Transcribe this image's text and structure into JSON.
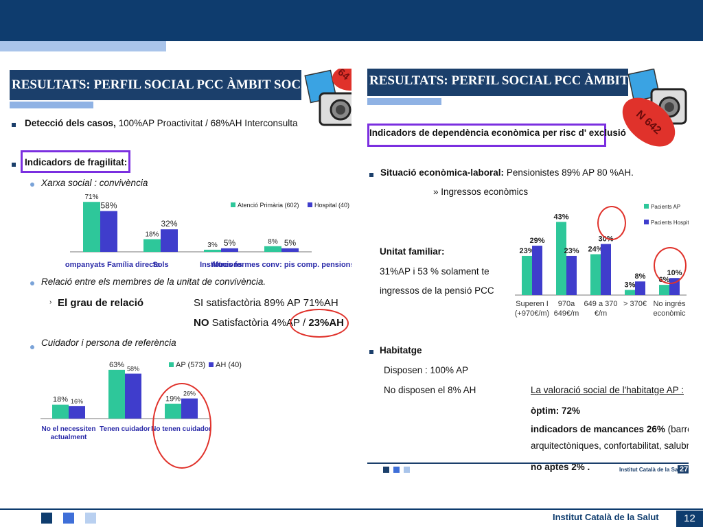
{
  "slide": {
    "footer_org": "Institut Català de la Salut",
    "page_number": "12"
  },
  "left": {
    "title": "RESULTATS: PERFIL SOCIAL PCC ÀMBIT SOCIAL",
    "badge_partial": "64",
    "detection_label": "Detecció dels casos,",
    "detection_value": "100%AP Proactivitat / 68%AH Interconsulta",
    "frailty_heading": "Indicadors de fragilitat:",
    "social_network": "Xarxa social : convivència",
    "relation_heading": "Relació entre els membres de la unitat de convivència.",
    "relation_degree": "El grau de relació",
    "satisfactory": "SI satisfactòria 89% AP 71%AH",
    "not_satisfactory_no": "NO",
    "not_satisfactory_rest": "Satisfactòria 4%AP /",
    "not_satisfactory_ah": "23%AH",
    "caregiver_heading": "Cuidador i persona de referència"
  },
  "right": {
    "title": "RESULTATS: PERFIL SOCIAL PCC ÀMBIT SOCIAL",
    "badge": "N 642",
    "dependency_box": "Indicadors de dependència econòmica per risc d' exclusió",
    "econ_label": "Situació econòmica-laboral:",
    "econ_value": "Pensionistes 89% AP 80 %AH.",
    "income": "» Ingressos econòmics",
    "unit_family_1": "Unitat familiar:",
    "unit_family_2": "31%AP i 53 % solament te",
    "unit_family_3": "ingressos de la pensió PCC",
    "housing_heading": "Habitatge",
    "housing_yes": "Disposen : 100% AP",
    "housing_no": "No disposen el 8% AH",
    "valuation_title": "La valoració social de l'habitatge AP :",
    "optimal": "òptim: 72%",
    "deficits_bold": "indicadors de mancances 26%",
    "deficits_rest": "(barreres",
    "deficits_line2": "arquitectòniques, confortabilitat, salubritat)",
    "not_fit": "no aptes 2% .",
    "footer_org_small": "Institut Català de la Salut",
    "footer_page_small": "27"
  },
  "colors": {
    "green": "#2ec79a",
    "blue": "#3f3dcc",
    "navy": "#1b3f6b",
    "red": "#e0322b",
    "purple": "#7b2fe0"
  },
  "chart_data": [
    {
      "type": "bar",
      "categories": [
        "Acompanyats Família directa",
        "Sols",
        "Institucions",
        "Altres formes conv: pis comp. pensions"
      ],
      "series": [
        {
          "name": "Atenció Primària (602)",
          "values": [
            71,
            18,
            3,
            8
          ],
          "labels": [
            "71%",
            "18%",
            "3%",
            "8%"
          ]
        },
        {
          "name": "Hospital   (40)",
          "values": [
            58,
            32,
            5,
            5
          ],
          "labels": [
            "58%",
            "32%",
            "5%",
            "5%"
          ]
        }
      ],
      "ylim": [
        0,
        80
      ]
    },
    {
      "type": "bar",
      "categories": [
        "No el necessiten actualment",
        "Tenen cuidador",
        "No tenen cuidador"
      ],
      "series": [
        {
          "name": "AP (573)",
          "values": [
            18,
            63,
            19
          ],
          "labels": [
            "18%",
            "63%",
            "19%"
          ]
        },
        {
          "name": "AH (40)",
          "values": [
            16,
            58,
            26
          ],
          "labels": [
            "16%",
            "58%",
            "26%"
          ]
        }
      ],
      "ylim": [
        0,
        70
      ]
    },
    {
      "type": "bar",
      "categories": [
        "Superen I (+970€/m)",
        "970a 649€/m",
        "649 a 370 €/m",
        "> 370€",
        "No ingrés econòmic"
      ],
      "series": [
        {
          "name": "Pacients AP",
          "values": [
            23,
            43,
            24,
            3,
            6
          ],
          "labels": [
            "23%",
            "43%",
            "24%",
            "3%",
            "6%"
          ]
        },
        {
          "name": "Pacients Hospital",
          "values": [
            29,
            23,
            30,
            8,
            10
          ],
          "labels": [
            "29%",
            "23%",
            "30%",
            "8%",
            "10%"
          ]
        }
      ],
      "ylim": [
        0,
        50
      ]
    }
  ]
}
